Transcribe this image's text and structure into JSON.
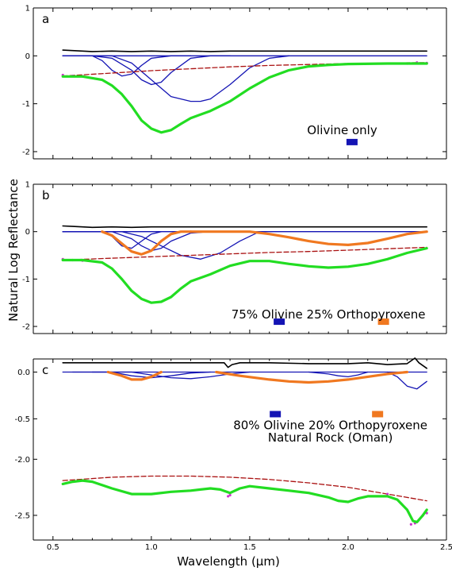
{
  "chart_data": {
    "type": "line",
    "xlabel": "Wavelength (µm)",
    "ylabel": "Natural Log Reflectance",
    "xlim": [
      0.4,
      2.5
    ],
    "xticks": [
      "0.5",
      "1.0",
      "1.5",
      "2.0",
      "2.5"
    ],
    "colors": {
      "spectrum": "#22dd22",
      "measured": "#cc33cc",
      "continuum": "#aa1111",
      "residual": "#000000",
      "olivine": "#1414b4",
      "orthopyroxene": "#f07820"
    },
    "panels": [
      {
        "id": "a",
        "label": "a",
        "ylim": [
          -2.15,
          1.0
        ],
        "yticks": [
          "1",
          "0",
          "-1",
          "-2"
        ],
        "annotations": [
          {
            "text": "Olivine only",
            "x": 1.97,
            "y": -1.55
          }
        ],
        "markers": [
          {
            "mineral": "olivine",
            "x": 2.02,
            "y": -1.8
          }
        ],
        "series": [
          {
            "role": "residual",
            "x": [
              0.55,
              0.6,
              0.7,
              0.8,
              0.9,
              1.0,
              1.1,
              1.2,
              1.3,
              1.4,
              1.5,
              1.6,
              1.7,
              1.8,
              1.9,
              2.0,
              2.1,
              2.2,
              2.3,
              2.4
            ],
            "y": [
              0.12,
              0.11,
              0.09,
              0.1,
              0.09,
              0.1,
              0.09,
              0.1,
              0.09,
              0.1,
              0.1,
              0.1,
              0.1,
              0.1,
              0.1,
              0.1,
              0.1,
              0.1,
              0.1,
              0.1
            ]
          },
          {
            "role": "olivine",
            "x": [
              0.55,
              0.7,
              0.75,
              0.8,
              0.85,
              0.9,
              0.95,
              1.0,
              1.1,
              1.2
            ],
            "y": [
              0,
              0,
              -0.1,
              -0.3,
              -0.42,
              -0.38,
              -0.2,
              -0.05,
              0,
              0
            ]
          },
          {
            "role": "olivine",
            "x": [
              0.55,
              0.7,
              0.8,
              0.9,
              0.95,
              1.0,
              1.05,
              1.1,
              1.2,
              1.3,
              1.4
            ],
            "y": [
              0,
              0,
              -0.05,
              -0.3,
              -0.5,
              -0.6,
              -0.55,
              -0.35,
              -0.05,
              0,
              0
            ]
          },
          {
            "role": "olivine",
            "x": [
              0.55,
              0.8,
              0.9,
              1.0,
              1.1,
              1.2,
              1.25,
              1.3,
              1.4,
              1.5,
              1.6,
              1.7
            ],
            "y": [
              0,
              0,
              -0.15,
              -0.5,
              -0.85,
              -0.95,
              -0.95,
              -0.9,
              -0.6,
              -0.25,
              -0.05,
              0
            ]
          },
          {
            "role": "olivine",
            "x": [
              0.55,
              2.4
            ],
            "y": [
              0,
              0
            ]
          },
          {
            "role": "continuum",
            "x": [
              0.55,
              0.8,
              1.0,
              1.2,
              1.4,
              1.6,
              1.8,
              2.0,
              2.2,
              2.4
            ],
            "y": [
              -0.42,
              -0.36,
              -0.31,
              -0.27,
              -0.23,
              -0.2,
              -0.18,
              -0.16,
              -0.15,
              -0.14
            ]
          },
          {
            "role": "spectrum",
            "x": [
              0.55,
              0.65,
              0.75,
              0.8,
              0.85,
              0.9,
              0.95,
              1.0,
              1.05,
              1.1,
              1.15,
              1.2,
              1.3,
              1.4,
              1.5,
              1.6,
              1.7,
              1.8,
              1.9,
              2.0,
              2.2,
              2.4
            ],
            "y": [
              -0.43,
              -0.43,
              -0.5,
              -0.62,
              -0.8,
              -1.05,
              -1.35,
              -1.52,
              -1.6,
              -1.55,
              -1.42,
              -1.3,
              -1.15,
              -0.95,
              -0.68,
              -0.45,
              -0.3,
              -0.22,
              -0.19,
              -0.17,
              -0.16,
              -0.16
            ]
          },
          {
            "role": "measured",
            "x": [
              0.55,
              0.6,
              0.65,
              2.3,
              2.35,
              2.4
            ],
            "y": [
              -0.4,
              -0.42,
              -0.43,
              -0.16,
              -0.14,
              -0.15
            ]
          }
        ]
      },
      {
        "id": "b",
        "label": "b",
        "ylim": [
          -2.15,
          1.0
        ],
        "yticks": [
          "1",
          "0",
          "-1",
          "-2"
        ],
        "annotations": [
          {
            "text": "75% Olivine 25% Orthopyroxene",
            "x": 1.9,
            "y": -1.75
          }
        ],
        "markers": [
          {
            "mineral": "olivine",
            "x": 1.65,
            "y": -1.9
          },
          {
            "mineral": "orthopyroxene",
            "x": 2.18,
            "y": -1.9
          }
        ],
        "series": [
          {
            "role": "residual",
            "x": [
              0.55,
              0.6,
              0.7,
              0.8,
              0.9,
              1.0,
              1.2,
              1.4,
              1.6,
              1.8,
              2.0,
              2.2,
              2.4
            ],
            "y": [
              0.12,
              0.11,
              0.09,
              0.1,
              0.09,
              0.1,
              0.1,
              0.1,
              0.1,
              0.1,
              0.1,
              0.1,
              0.1
            ]
          },
          {
            "role": "olivine",
            "x": [
              0.55,
              0.75,
              0.8,
              0.85,
              0.9,
              0.95,
              1.0,
              1.05
            ],
            "y": [
              0,
              0,
              -0.1,
              -0.3,
              -0.35,
              -0.2,
              -0.05,
              0
            ]
          },
          {
            "role": "olivine",
            "x": [
              0.55,
              0.8,
              0.9,
              0.95,
              1.0,
              1.05,
              1.1,
              1.2,
              1.3
            ],
            "y": [
              0,
              0,
              -0.15,
              -0.3,
              -0.4,
              -0.35,
              -0.2,
              -0.03,
              0
            ]
          },
          {
            "role": "olivine",
            "x": [
              0.55,
              0.85,
              0.95,
              1.05,
              1.15,
              1.25,
              1.35,
              1.45,
              1.55
            ],
            "y": [
              0,
              0,
              -0.1,
              -0.3,
              -0.5,
              -0.58,
              -0.45,
              -0.2,
              0
            ]
          },
          {
            "role": "olivine",
            "x": [
              0.55,
              2.4
            ],
            "y": [
              0,
              0
            ]
          },
          {
            "role": "orthopyroxene",
            "x": [
              0.75,
              0.8,
              0.85,
              0.9,
              0.95,
              1.0,
              1.05,
              1.1,
              1.15,
              1.2
            ],
            "y": [
              0,
              -0.08,
              -0.25,
              -0.42,
              -0.48,
              -0.4,
              -0.2,
              -0.05,
              0,
              0
            ]
          },
          {
            "role": "orthopyroxene",
            "x": [
              1.2,
              1.5,
              1.6,
              1.7,
              1.8,
              1.9,
              2.0,
              2.1,
              2.2,
              2.3,
              2.4
            ],
            "y": [
              0,
              0,
              -0.05,
              -0.12,
              -0.2,
              -0.26,
              -0.28,
              -0.24,
              -0.15,
              -0.05,
              0
            ]
          },
          {
            "role": "continuum",
            "x": [
              0.55,
              0.8,
              1.0,
              1.2,
              1.4,
              1.6,
              1.8,
              2.0,
              2.2,
              2.4
            ],
            "y": [
              -0.6,
              -0.56,
              -0.53,
              -0.5,
              -0.47,
              -0.44,
              -0.42,
              -0.39,
              -0.36,
              -0.33
            ]
          },
          {
            "role": "spectrum",
            "x": [
              0.55,
              0.65,
              0.75,
              0.8,
              0.85,
              0.9,
              0.95,
              1.0,
              1.05,
              1.1,
              1.15,
              1.2,
              1.3,
              1.4,
              1.5,
              1.6,
              1.7,
              1.8,
              1.9,
              2.0,
              2.1,
              2.2,
              2.3,
              2.4
            ],
            "y": [
              -0.6,
              -0.6,
              -0.65,
              -0.78,
              -1.0,
              -1.25,
              -1.42,
              -1.5,
              -1.48,
              -1.38,
              -1.2,
              -1.05,
              -0.9,
              -0.72,
              -0.62,
              -0.62,
              -0.68,
              -0.73,
              -0.76,
              -0.74,
              -0.68,
              -0.58,
              -0.45,
              -0.35
            ]
          },
          {
            "role": "measured",
            "x": [
              0.55,
              0.6,
              0.65
            ],
            "y": [
              -0.58,
              -0.6,
              -0.61
            ]
          }
        ]
      },
      {
        "id": "c",
        "label": "c",
        "ylim": [
          -0.65,
          0.2
        ],
        "yticks": [
          "0.0",
          "-0.5"
        ],
        "annotations": [
          {
            "text": "80% Olivine 20% Orthopyroxene",
            "x": 1.91,
            "y": -0.57
          },
          {
            "text": "Natural Rock (Oman)",
            "x": 1.91,
            "y": -0.7
          }
        ],
        "markers": [
          {
            "mineral": "olivine",
            "x": 1.63,
            "y": -0.45
          },
          {
            "mineral": "orthopyroxene",
            "x": 2.15,
            "y": -0.45
          }
        ],
        "series": [
          {
            "role": "residual",
            "x": [
              0.55,
              0.7,
              0.9,
              1.1,
              1.3,
              1.37,
              1.39,
              1.41,
              1.45,
              1.6,
              1.8,
              2.0,
              2.1,
              2.2,
              2.3,
              2.34,
              2.36,
              2.4
            ],
            "y": [
              0.1,
              0.1,
              0.1,
              0.1,
              0.1,
              0.1,
              0.05,
              0.08,
              0.1,
              0.1,
              0.09,
              0.09,
              0.1,
              0.08,
              0.09,
              0.15,
              0.1,
              0.04
            ]
          },
          {
            "role": "olivine",
            "x": [
              0.55,
              2.4
            ],
            "y": [
              0,
              0
            ]
          },
          {
            "role": "olivine",
            "x": [
              0.6,
              0.8,
              0.9,
              1.0,
              1.1,
              1.2,
              1.3
            ],
            "y": [
              0,
              0,
              -0.04,
              -0.06,
              -0.04,
              -0.01,
              0
            ]
          },
          {
            "role": "olivine",
            "x": [
              0.7,
              0.9,
              1.0,
              1.1,
              1.2,
              1.3,
              1.4,
              1.5
            ],
            "y": [
              0,
              0,
              -0.03,
              -0.06,
              -0.07,
              -0.05,
              -0.02,
              0
            ]
          },
          {
            "role": "olivine",
            "x": [
              1.8,
              1.9,
              1.95,
              2.0,
              2.05,
              2.1
            ],
            "y": [
              0,
              -0.02,
              -0.04,
              -0.05,
              -0.03,
              0
            ]
          },
          {
            "role": "olivine",
            "x": [
              2.2,
              2.25,
              2.3,
              2.35,
              2.4
            ],
            "y": [
              0,
              -0.05,
              -0.15,
              -0.18,
              -0.1
            ]
          },
          {
            "role": "orthopyroxene",
            "x": [
              0.78,
              0.85,
              0.9,
              0.95,
              1.0,
              1.05
            ],
            "y": [
              0,
              -0.04,
              -0.08,
              -0.08,
              -0.05,
              0
            ]
          },
          {
            "role": "orthopyroxene",
            "x": [
              1.33,
              1.45,
              1.6,
              1.7,
              1.8,
              1.9,
              2.0,
              2.1,
              2.2,
              2.3
            ],
            "y": [
              0,
              -0.04,
              -0.08,
              -0.1,
              -0.11,
              -0.1,
              -0.08,
              -0.05,
              -0.02,
              0
            ]
          }
        ]
      },
      {
        "id": "c-lower",
        "label": "",
        "ylim": [
          -2.72,
          -1.92
        ],
        "yticks": [
          "-2.0",
          "-2.5"
        ],
        "annotations": [],
        "markers": [],
        "series": [
          {
            "role": "continuum",
            "x": [
              0.55,
              0.8,
              1.0,
              1.2,
              1.4,
              1.6,
              1.8,
              2.0,
              2.2,
              2.4
            ],
            "y": [
              -2.19,
              -2.16,
              -2.15,
              -2.15,
              -2.16,
              -2.18,
              -2.21,
              -2.25,
              -2.31,
              -2.37
            ]
          },
          {
            "role": "spectrum",
            "x": [
              0.55,
              0.6,
              0.65,
              0.7,
              0.8,
              0.9,
              1.0,
              1.1,
              1.2,
              1.3,
              1.35,
              1.4,
              1.45,
              1.5,
              1.6,
              1.7,
              1.8,
              1.9,
              1.95,
              2.0,
              2.05,
              2.1,
              2.2,
              2.25,
              2.3,
              2.33,
              2.35,
              2.38,
              2.4
            ],
            "y": [
              -2.22,
              -2.2,
              -2.19,
              -2.2,
              -2.26,
              -2.31,
              -2.31,
              -2.29,
              -2.28,
              -2.26,
              -2.27,
              -2.3,
              -2.26,
              -2.24,
              -2.26,
              -2.28,
              -2.3,
              -2.34,
              -2.37,
              -2.38,
              -2.35,
              -2.33,
              -2.33,
              -2.36,
              -2.45,
              -2.55,
              -2.56,
              -2.5,
              -2.45
            ]
          },
          {
            "role": "measured",
            "x": [
              1.39,
              1.4,
              2.2,
              2.32,
              2.34,
              2.38,
              2.4
            ],
            "y": [
              -2.33,
              -2.32,
              -2.31,
              -2.58,
              -2.57,
              -2.5,
              -2.48
            ]
          }
        ]
      }
    ]
  }
}
